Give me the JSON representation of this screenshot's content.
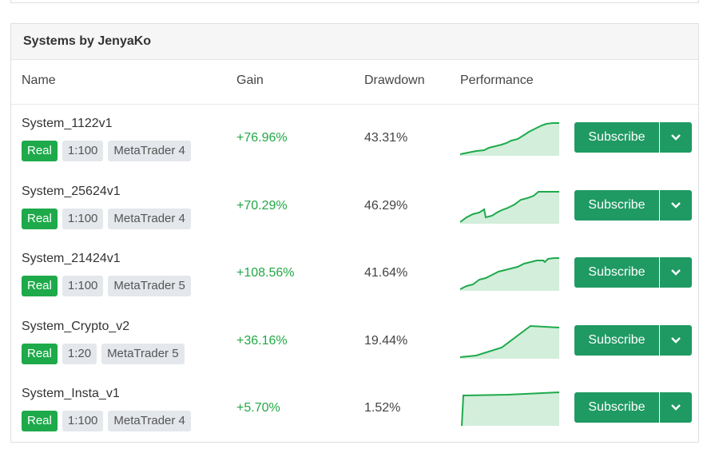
{
  "panel": {
    "title": "Systems by JenyaKo",
    "columns": {
      "name": "Name",
      "gain": "Gain",
      "drawdown": "Drawdown",
      "performance": "Performance"
    }
  },
  "colors": {
    "accent": "#1f9a63",
    "gain": "#22a845",
    "real_badge": "#1eaa4b",
    "chart_fill": "#d3eedb",
    "chart_line": "#1eaa4b"
  },
  "rows": [
    {
      "name": "System_1122v1",
      "account_type": "Real",
      "leverage": "1:100",
      "platform": "MetaTrader 4",
      "gain": "+76.96%",
      "drawdown": "43.31%",
      "subscribe_label": "Subscribe",
      "dropdown_icon": "chevron-down-icon"
    },
    {
      "name": "System_25624v1",
      "account_type": "Real",
      "leverage": "1:100",
      "platform": "MetaTrader 4",
      "gain": "+70.29%",
      "drawdown": "46.29%",
      "subscribe_label": "Subscribe",
      "dropdown_icon": "chevron-down-icon"
    },
    {
      "name": "System_21424v1",
      "account_type": "Real",
      "leverage": "1:100",
      "platform": "MetaTrader 5",
      "gain": "+108.56%",
      "drawdown": "41.64%",
      "subscribe_label": "Subscribe",
      "dropdown_icon": "chevron-down-icon"
    },
    {
      "name": "System_Crypto_v2",
      "account_type": "Real",
      "leverage": "1:20",
      "platform": "MetaTrader 5",
      "gain": "+36.16%",
      "drawdown": "19.44%",
      "subscribe_label": "Subscribe",
      "dropdown_icon": "chevron-down-icon"
    },
    {
      "name": "System_Insta_v1",
      "account_type": "Real",
      "leverage": "1:100",
      "platform": "MetaTrader 4",
      "gain": "+5.70%",
      "drawdown": "1.52%",
      "subscribe_label": "Subscribe",
      "dropdown_icon": "chevron-down-icon"
    }
  ]
}
